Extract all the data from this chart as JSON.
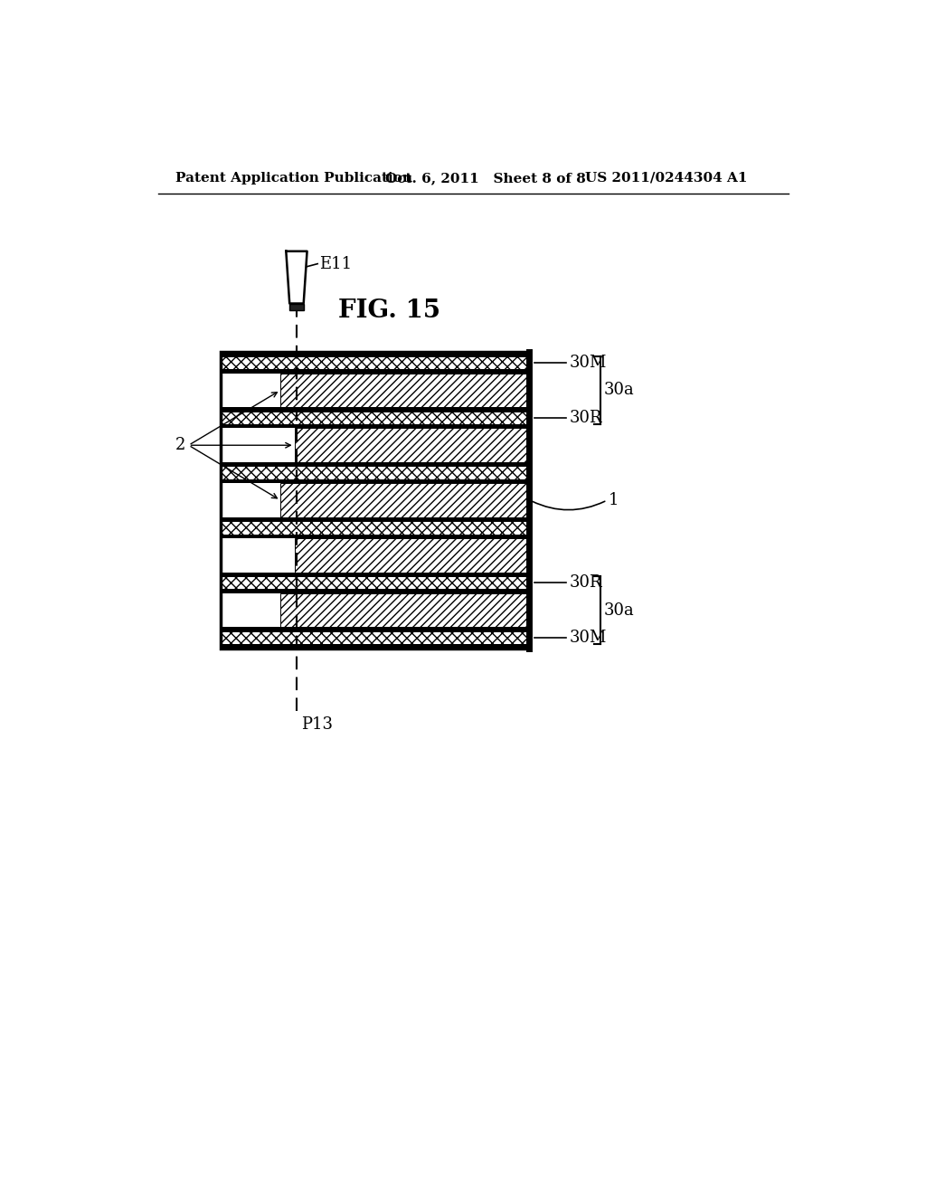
{
  "title": "FIG. 15",
  "header_left": "Patent Application Publication",
  "header_mid": "Oct. 6, 2011   Sheet 8 of 8",
  "header_right": "US 2011/0244304 A1",
  "bg_color": "#ffffff",
  "text_color": "#000000",
  "diagram": {
    "electrode_label": "E11",
    "point_label": "P13",
    "label_1": "1",
    "label_2": "2",
    "label_30M": "30M",
    "label_30R": "30R",
    "label_30a": "30a"
  }
}
